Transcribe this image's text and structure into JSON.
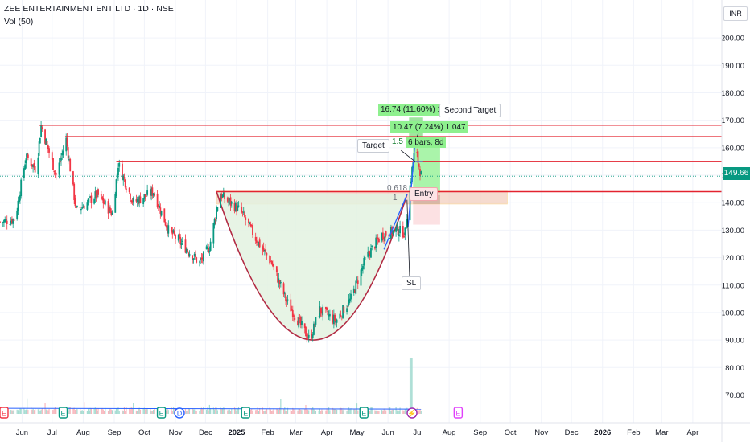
{
  "header": {
    "title": "ZEE ENTERTAINMENT ENT LTD · 1D · NSE",
    "volume_label": "Vol (50)"
  },
  "currency": "INR",
  "last_price": "149.66",
  "annotations": {
    "target": "Target",
    "second_target": "Second Target",
    "entry": "Entry",
    "sl": "SL",
    "measure_1": "16.74 (11.60%) 1,674",
    "measure_2": "10.47 (7.24%) 1,047",
    "bars_info": "6 bars, 8d",
    "fib_0618": "0.618",
    "fib_1": "1",
    "fib_15": "1.5"
  },
  "colors": {
    "up": "#089981",
    "down": "#f23645",
    "resistance": "#e3232f",
    "cup_fill": "#e3f2e1",
    "cup_stroke": "#b22a43",
    "target_zone": "#8ef08e",
    "stop_zone": "#fbd4d7",
    "entry_band": "#f1c4b0",
    "trend": "#2962ff",
    "volume_avg": "#2962ff"
  },
  "chart_data": {
    "type": "candlestick",
    "title": "ZEE ENTERTAINMENT ENT LTD · 1D · NSE",
    "ylabel": "INR",
    "ylim": [
      64,
      205
    ],
    "y_ticks": [
      "200.00",
      "190.00",
      "180.00",
      "170.00",
      "160.00",
      "150.00",
      "140.00",
      "130.00",
      "120.00",
      "110.00",
      "100.00",
      "90.00",
      "80.00",
      "70.00"
    ],
    "x_ticks": [
      "Jun",
      "Jul",
      "Aug",
      "Sep",
      "Oct",
      "Nov",
      "Dec",
      "2025",
      "Feb",
      "Mar",
      "Apr",
      "May",
      "Jun",
      "Jul",
      "Aug",
      "Sep",
      "Oct",
      "Nov",
      "Dec",
      "2026",
      "Feb",
      "Mar",
      "Apr"
    ],
    "x_range": [
      "2024-05-10",
      "2026-04-30"
    ],
    "grid": true,
    "price_keyframes": [
      [
        "2024-05-10",
        133
      ],
      [
        "2024-05-25",
        134
      ],
      [
        "2024-06-05",
        157
      ],
      [
        "2024-06-15",
        152
      ],
      [
        "2024-06-20",
        168
      ],
      [
        "2024-07-05",
        150
      ],
      [
        "2024-07-15",
        163
      ],
      [
        "2024-07-25",
        137
      ],
      [
        "2024-08-15",
        143
      ],
      [
        "2024-08-30",
        136
      ],
      [
        "2024-09-05",
        154
      ],
      [
        "2024-09-20",
        140
      ],
      [
        "2024-10-10",
        144
      ],
      [
        "2024-10-25",
        130
      ],
      [
        "2024-11-10",
        124
      ],
      [
        "2024-11-25",
        118
      ],
      [
        "2024-12-05",
        124
      ],
      [
        "2024-12-15",
        143
      ],
      [
        "2025-01-05",
        137
      ],
      [
        "2025-01-20",
        127
      ],
      [
        "2025-02-05",
        118
      ],
      [
        "2025-02-20",
        104
      ],
      [
        "2025-03-05",
        96
      ],
      [
        "2025-03-15",
        90
      ],
      [
        "2025-03-25",
        101
      ],
      [
        "2025-04-10",
        97
      ],
      [
        "2025-04-25",
        105
      ],
      [
        "2025-05-10",
        120
      ],
      [
        "2025-05-25",
        128
      ],
      [
        "2025-06-10",
        130
      ],
      [
        "2025-06-18",
        129
      ],
      [
        "2025-06-22",
        143
      ],
      [
        "2025-06-25",
        152
      ],
      [
        "2025-06-28",
        160
      ],
      [
        "2025-07-01",
        155
      ],
      [
        "2025-07-04",
        150
      ]
    ],
    "resistance_levels": [
      168.2,
      164.0,
      155.0,
      144.0
    ],
    "fib_levels": {
      "0.618": 143.0,
      "1": 147.0,
      "1.5": 157.0
    },
    "cup": {
      "left": [
        "2024-12-12",
        144
      ],
      "bottom": [
        "2025-03-18",
        90
      ],
      "right": [
        "2025-06-20",
        143
      ]
    },
    "entry": 143.5,
    "stop_loss": 132.0,
    "target": 155.0,
    "second_target": 167.0,
    "volume": {
      "ylim": [
        0,
        600
      ],
      "avg_level": 55,
      "spike_date": "2025-06-24",
      "spike_value": 560
    },
    "events": [
      {
        "date": "2024-05-14",
        "label": "E",
        "color": "#f23645"
      },
      {
        "date": "2024-07-12",
        "label": "E",
        "color": "#089981"
      },
      {
        "date": "2024-10-18",
        "label": "E",
        "color": "#089981"
      },
      {
        "date": "2024-11-05",
        "label": "D",
        "color": "#2962ff"
      },
      {
        "date": "2025-01-10",
        "label": "E",
        "color": "#089981"
      },
      {
        "date": "2025-05-08",
        "label": "E",
        "color": "#089981"
      },
      {
        "date": "2025-06-25",
        "label": "⚡",
        "color": "#9c27b0"
      },
      {
        "date": "2025-08-10",
        "label": "E",
        "color": "#e040fb"
      }
    ]
  }
}
